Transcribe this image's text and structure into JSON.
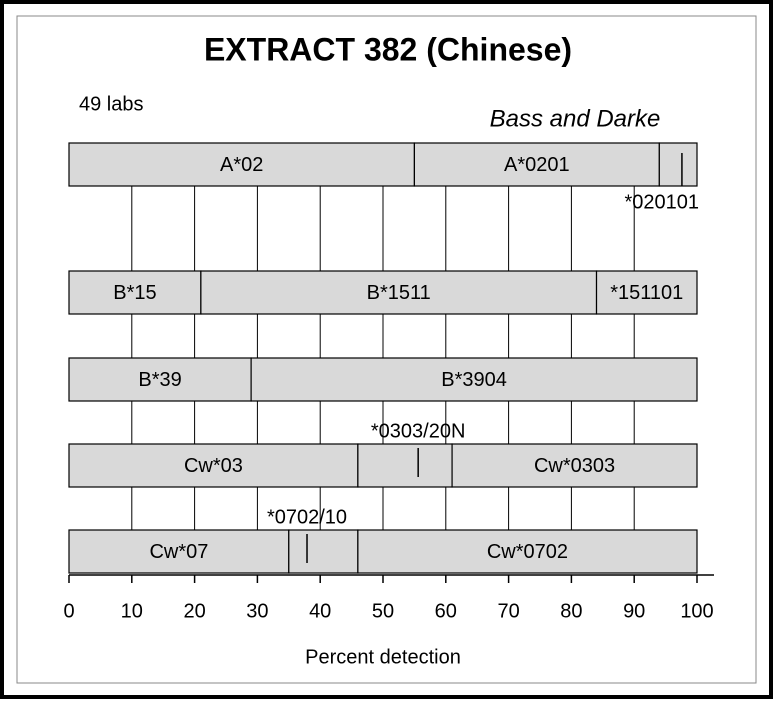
{
  "chart_data": {
    "type": "segmented-bar",
    "title": "EXTRACT 382 (Chinese)",
    "subtitle": "49 labs",
    "annotation": "Bass and Darke",
    "xlabel": "Percent detection",
    "xlim": [
      0,
      100
    ],
    "xticks": [
      0,
      10,
      20,
      30,
      40,
      50,
      60,
      70,
      80,
      90,
      100
    ],
    "grid": true,
    "color": "#d9d9d9",
    "rows": [
      {
        "segments": [
          {
            "name": "A*02",
            "value": 55
          },
          {
            "name": "A*0201",
            "value": 39
          },
          {
            "name": "*020101",
            "value": 6,
            "pointer": 97.6,
            "label_side": "below"
          }
        ]
      },
      {
        "segments": [
          {
            "name": "B*15",
            "value": 21
          },
          {
            "name": "B*1511",
            "value": 63
          },
          {
            "name": "*151101",
            "value": 16
          }
        ]
      },
      {
        "segments": [
          {
            "name": "B*39",
            "value": 29
          },
          {
            "name": "B*3904",
            "value": 71
          }
        ]
      },
      {
        "segments": [
          {
            "name": "Cw*03",
            "value": 46
          },
          {
            "name": "*0303/20N",
            "value": 15,
            "pointer": 55.6,
            "label_side": "above"
          },
          {
            "name": "Cw*0303",
            "value": 39
          }
        ]
      },
      {
        "segments": [
          {
            "name": "Cw*07",
            "value": 35
          },
          {
            "name": "*0702/10",
            "value": 11,
            "pointer": 37.9,
            "label_side": "above"
          },
          {
            "name": "Cw*0702",
            "value": 54
          }
        ]
      }
    ]
  }
}
